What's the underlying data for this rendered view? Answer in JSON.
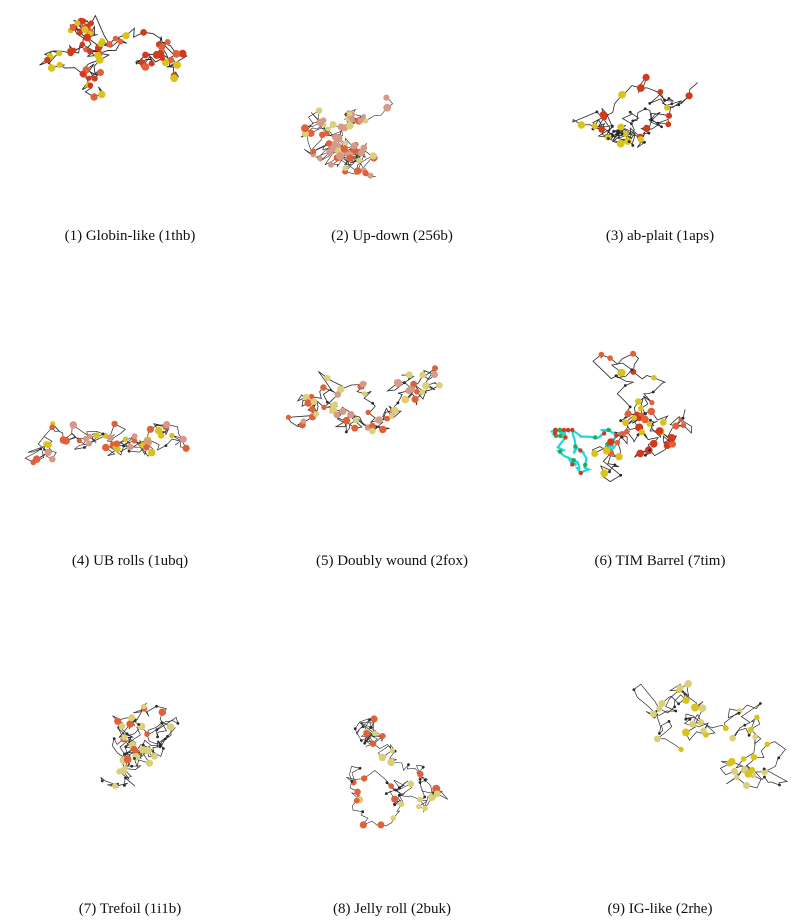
{
  "figures": [
    {
      "caption": "(1) Globin-like (1thb)"
    },
    {
      "caption": "(2) Up-down (256b)"
    },
    {
      "caption": "(3) ab-plait (1aps)"
    },
    {
      "caption": "(4) UB rolls (1ubq)"
    },
    {
      "caption": "(5) Doubly wound (2fox)"
    },
    {
      "caption": "(6) TIM Barrel (7tim)"
    },
    {
      "caption": "(7) Trefoil (1i1b)"
    },
    {
      "caption": "(8) Jelly roll (2buk)"
    },
    {
      "caption": "(9) IG-like (2rhe)"
    }
  ],
  "colors": {
    "backbone": "#2a2a2a",
    "helix_red": "#d23a1e",
    "helix_orange": "#e0603a",
    "sheet_yellow": "#d9c21a",
    "pale_pink": "#d89a88",
    "pale_yellow": "#dccf7a",
    "cyan": "#20d8e0",
    "green": "#2aa84a"
  }
}
